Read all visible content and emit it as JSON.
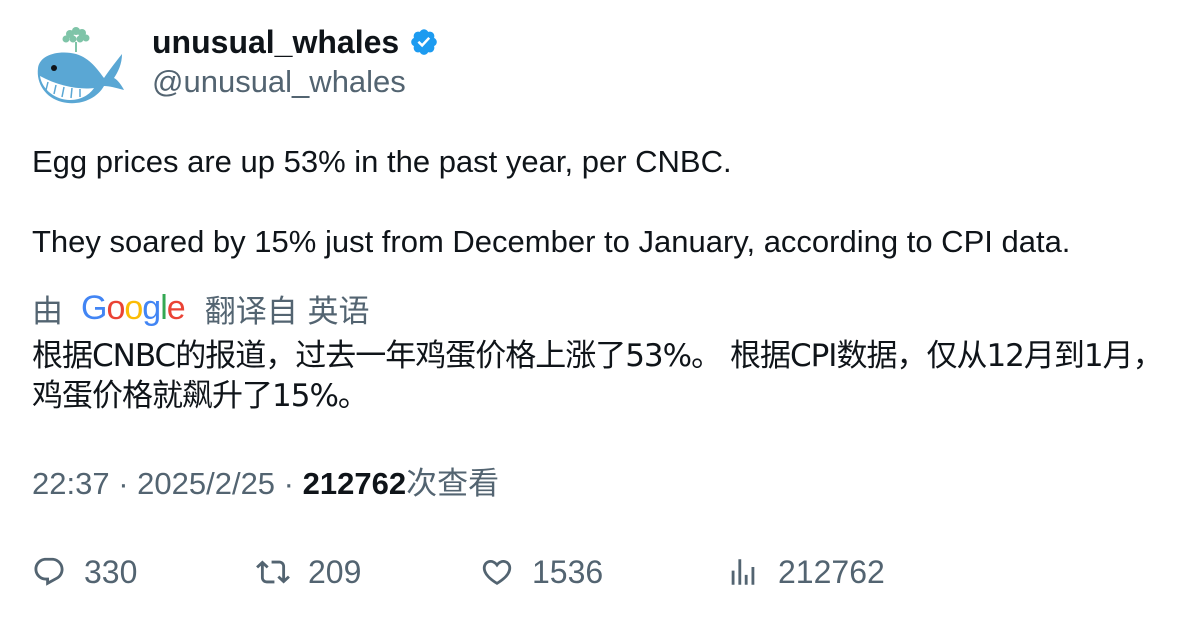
{
  "author": {
    "display_name": "unusual_whales",
    "handle": "@unusual_whales",
    "verified": true,
    "avatar_icon": "whale-icon",
    "verified_color": "#1d9bf0"
  },
  "tweet": {
    "text": "Egg prices are up 53% in the past year, per CNBC.\n\nThey soared by 15% just from December to January, according to CPI data."
  },
  "translation": {
    "prefix": "由",
    "provider": "Google",
    "suffix": "翻译自 英语",
    "text": "根据CNBC的报道，过去一年鸡蛋价格上涨了53%。 根据CPI数据，仅从12月到1月，鸡蛋价格就飙升了15%。"
  },
  "meta": {
    "time": "22:37",
    "date": "2025/2/25",
    "separator": " · ",
    "views_count": "212762",
    "views_label": "次查看"
  },
  "actions": {
    "replies": "330",
    "retweets": "209",
    "likes": "1536",
    "views": "212762"
  },
  "colors": {
    "text_primary": "#0f1419",
    "text_secondary": "#536471"
  }
}
